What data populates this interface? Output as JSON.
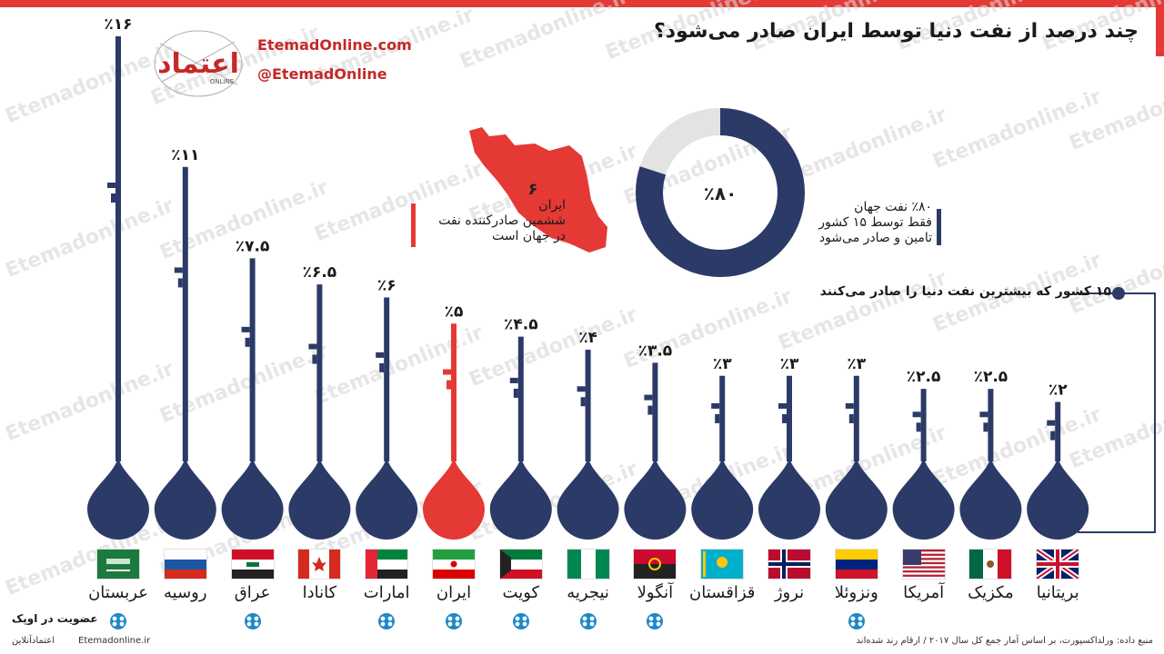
{
  "header": {
    "title": "چند درصد از نفت دنیا توسط ایران صادر می‌شود؟",
    "brand_url": "EtemadOnline.com",
    "brand_handle": "@EtemadOnline",
    "logo_text": "اعتماد",
    "logo_sub": "ONLINE"
  },
  "watermark_text": "Etemadonline.ir",
  "iran_box": {
    "rank": "۶",
    "text": "ایران\nششمین صادرکننده نفت\nدر جهان است",
    "color": "#e53935"
  },
  "donut": {
    "center_label": "٪۸۰",
    "share": 0.8,
    "text": "٪۸۰ نفت جهان\nفقط توسط ۱۵ کشور\nتامین و صادر می‌شود",
    "fill_color": "#2b3a67",
    "rest_color": "#e3e3e3"
  },
  "legend_label": "۱۵ کشور که بیشترین نفت دنیا را صادر می‌کنند",
  "opec_label": "عضویت در اوپک",
  "footer": {
    "left": "اعتمادآنلاین",
    "url": "Etemadonline.ir",
    "source": "منبع داده: ورلداکسپورت، بر اساس آمار جمع کل سال ۲۰۱۷ / ارقام رند شده‌اند"
  },
  "colors": {
    "navy": "#2b3a67",
    "red": "#e53935"
  },
  "chart_data": {
    "type": "bar",
    "title": "",
    "xlabel": "",
    "ylabel": "",
    "ylim": [
      0,
      16
    ],
    "categories": [
      "عربستان",
      "روسیه",
      "عراق",
      "کانادا",
      "امارات",
      "ایران",
      "کویت",
      "نیجریه",
      "آنگولا",
      "قزاقستان",
      "نروژ",
      "ونزوئلا",
      "آمریکا",
      "مکزیک",
      "بریتانیا"
    ],
    "values": [
      16,
      11,
      7.5,
      6.5,
      6,
      5,
      4.5,
      4,
      3.5,
      3,
      3,
      3,
      2.5,
      2.5,
      2
    ],
    "value_labels": [
      "٪۱۶",
      "٪۱۱",
      "٪۷.۵",
      "٪۶.۵",
      "٪۶",
      "٪۵",
      "٪۴.۵",
      "٪۴",
      "٪۳.۵",
      "٪۳",
      "٪۳",
      "٪۳",
      "٪۲.۵",
      "٪۲.۵",
      "٪۲"
    ],
    "opec_member": [
      true,
      false,
      true,
      false,
      true,
      true,
      true,
      true,
      true,
      false,
      false,
      true,
      false,
      false,
      false
    ],
    "highlight": "ایران"
  }
}
